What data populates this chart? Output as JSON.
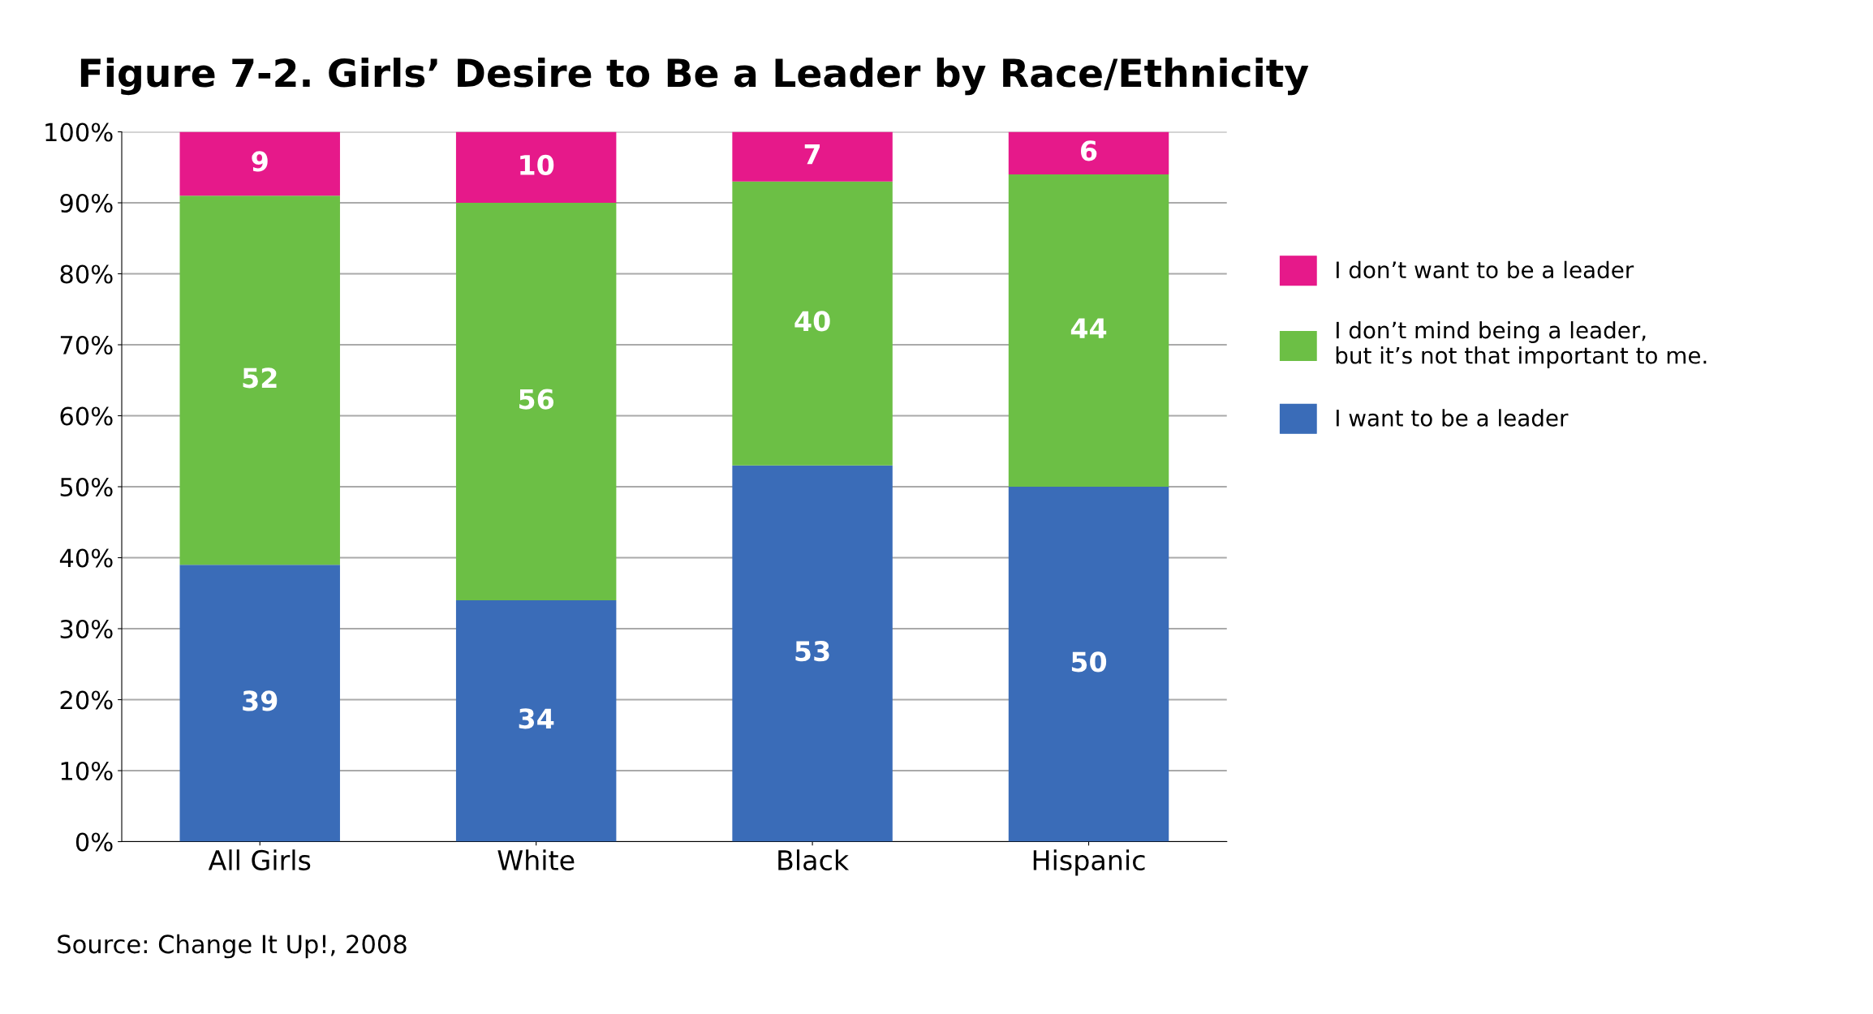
{
  "chart_data": {
    "type": "bar",
    "title": "Figure 7-2. Girls’ Desire to Be a Leader by Race/Ethnicity",
    "categories": [
      "All Girls",
      "White",
      "Black",
      "Hispanic"
    ],
    "stacked": true,
    "series": [
      {
        "name": "I want to be a leader",
        "color": "#3a6cb8",
        "values": [
          39,
          34,
          53,
          50
        ]
      },
      {
        "name": "I don’t mind being a leader, but it’s not that important to me.",
        "color": "#6cbf45",
        "values": [
          52,
          56,
          40,
          44
        ]
      },
      {
        "name": "I don’t want to be a leader",
        "color": "#e6198a",
        "values": [
          9,
          10,
          7,
          6
        ]
      }
    ],
    "ylim": [
      0,
      100
    ],
    "yticks": [
      {
        "value": 0,
        "label": "0%"
      },
      {
        "value": 10,
        "label": "10%"
      },
      {
        "value": 20,
        "label": "20%"
      },
      {
        "value": 30,
        "label": "30%"
      },
      {
        "value": 40,
        "label": "40%"
      },
      {
        "value": 50,
        "label": "50%"
      },
      {
        "value": 60,
        "label": "60%"
      },
      {
        "value": 70,
        "label": "70%"
      },
      {
        "value": 80,
        "label": "80%"
      },
      {
        "value": 90,
        "label": "90%"
      },
      {
        "value": 100,
        "label": "100%"
      }
    ],
    "grid": "y",
    "legend": "right",
    "data_labels": true,
    "annotations": [
      "Source: Change It Up!, 2008"
    ]
  }
}
